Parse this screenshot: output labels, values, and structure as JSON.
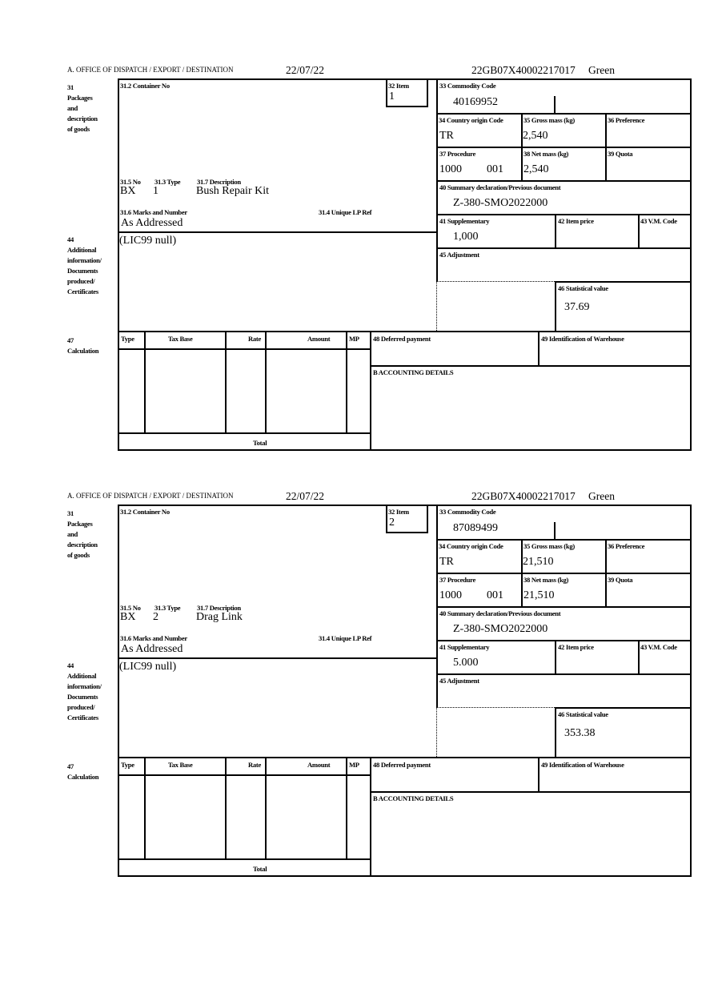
{
  "labels": {
    "office": "A.  OFFICE OF DISPATCH / EXPORT / DESTINATION",
    "packages": "31 Packages\nand\ndescription\nof goods",
    "container_no": "31.2 Container No",
    "item": "32 Item",
    "no": "31.5 No",
    "type": "31.3 Type",
    "description": "31.7 Description",
    "marks": "31.6 Marks and Number",
    "unique_lp_ref": "31.4 Unique LP Ref",
    "additional_info": "44\nAdditional\ninformation/\nDocuments\nproduced/\nCertificates",
    "commodity_code": "33 Commodity Code",
    "country_origin": "34 Country origin Code",
    "gross_mass": "35 Gross mass (kg)",
    "preference": "36 Preference",
    "procedure": "37 Procedure",
    "net_mass": "38 Net mass (kg)",
    "quota": "39 Quota",
    "summary_declaration": "40 Summary declaration/Previous document",
    "supplementary": "41 Supplementary",
    "item_price": "42 Item price",
    "vm_code": "43 V.M. Code",
    "adjustment": "45 Adjustment",
    "statistical_value": "46 Statistical value",
    "calculation": "47\nCalculation",
    "calc_type": "Type",
    "calc_tax_base": "Tax Base",
    "calc_rate": "Rate",
    "calc_amount": "Amount",
    "calc_mp": "MP",
    "deferred_payment": "48 Deferred payment",
    "warehouse": "49 Identification of Warehouse",
    "accounting": "B ACCOUNTING DETAILS",
    "total": "Total"
  },
  "forms": [
    {
      "date": "22/07/22",
      "reference": "22GB07X40002217017",
      "route": "Green",
      "item": "1",
      "no": "BX",
      "type": "1",
      "description": "Bush Repair Kit",
      "marks": "As Addressed",
      "additional_info": "(LIC99 null)",
      "commodity_code": "40169952",
      "country_origin": "TR",
      "gross_mass": "2,540",
      "procedure": "1000",
      "procedure_additional": "001",
      "net_mass": "2,540",
      "summary_declaration": "Z-380-SMO2022000",
      "supplementary": "1,000",
      "statistical_value": "37.69"
    },
    {
      "date": "22/07/22",
      "reference": "22GB07X40002217017",
      "route": "Green",
      "item": "2",
      "no": "BX",
      "type": "2",
      "description": "Drag Link",
      "marks": "As Addressed",
      "additional_info": "(LIC99 null)",
      "commodity_code": "87089499",
      "country_origin": "TR",
      "gross_mass": "21,510",
      "procedure": "1000",
      "procedure_additional": "001",
      "net_mass": "21,510",
      "summary_declaration": "Z-380-SMO2022000",
      "supplementary": "5.000",
      "statistical_value": "353.38"
    }
  ]
}
